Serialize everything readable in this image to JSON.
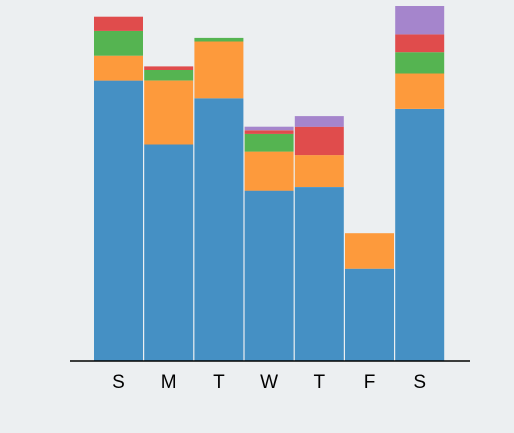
{
  "page": {
    "background": "#eceff1"
  },
  "chart_data": {
    "type": "bar",
    "stacked": true,
    "categories": [
      "S",
      "M",
      "T",
      "W",
      "T",
      "F",
      "S"
    ],
    "ylim": [
      0,
      100
    ],
    "grid": false,
    "legend": "none",
    "title": "",
    "xlabel": "",
    "ylabel": "",
    "series": [
      {
        "color": "#4590c4",
        "values": [
          79,
          61,
          74,
          48,
          49,
          26,
          71
        ]
      },
      {
        "color": "#fd9a3c",
        "values": [
          7,
          18,
          16,
          11,
          9,
          10,
          10
        ]
      },
      {
        "color": "#55b451",
        "values": [
          7,
          3,
          1,
          5,
          0,
          0,
          6
        ]
      },
      {
        "color": "#e04c4c",
        "values": [
          4,
          1,
          0,
          1,
          8,
          0,
          5
        ]
      },
      {
        "color": "#a585cc",
        "values": [
          0,
          0,
          0,
          1,
          3,
          0,
          8
        ]
      }
    ]
  }
}
